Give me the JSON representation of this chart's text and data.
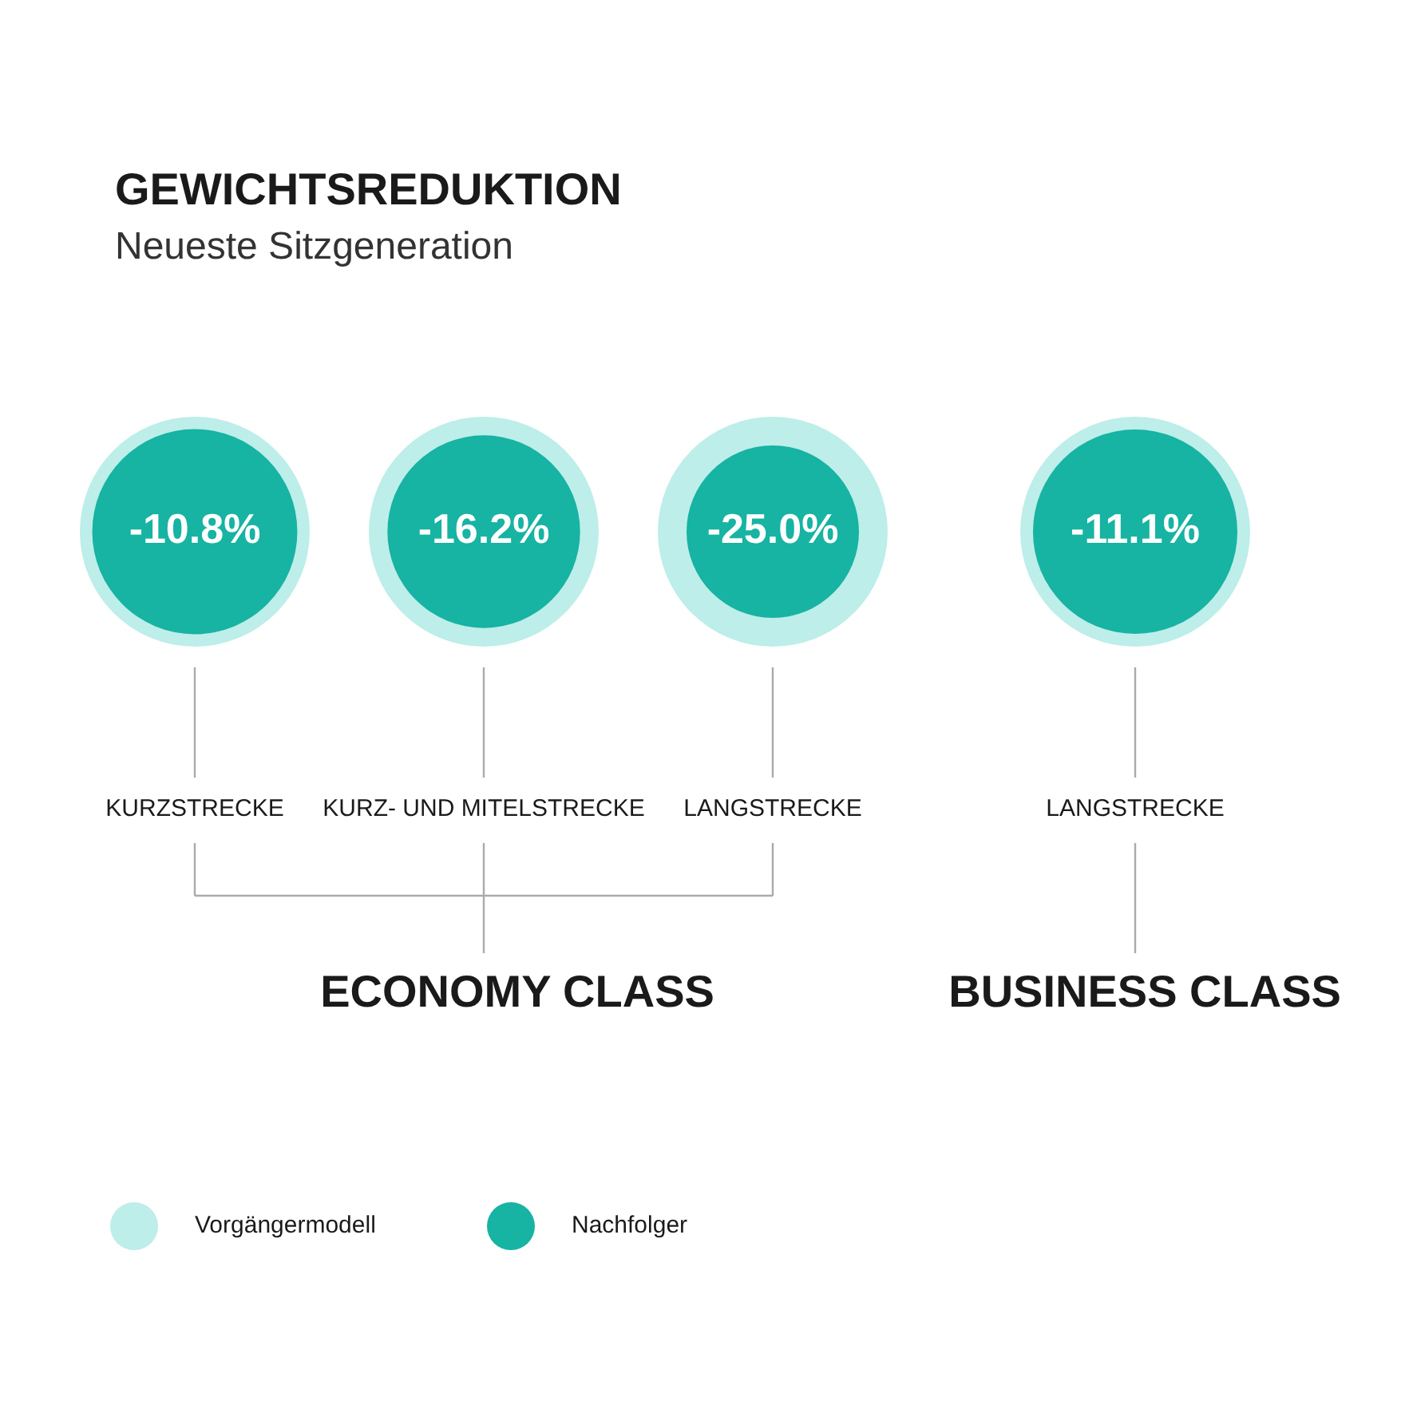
{
  "chart_data": {
    "type": "other",
    "title": "GEWICHTSREDUKTION",
    "subtitle": "Neueste Sitzgeneration",
    "categories": [
      "KURZSTRECKE",
      "KURZ- UND MITELSTRECKE",
      "LANGSTRECKE",
      "LANGSTRECKE"
    ],
    "series": [
      {
        "name": "Vorgängermodell",
        "color": "#bdeee9",
        "values": [
          null,
          null,
          null,
          null
        ]
      },
      {
        "name": "Nachfolger",
        "color": "#17b3a3",
        "values": [
          -10.8,
          -16.2,
          -25.0,
          -11.1
        ],
        "value_labels": [
          "-10.8%",
          "-16.2%",
          "-25.0%",
          "-11.1%"
        ]
      }
    ],
    "annotations": [
      "ECONOMY CLASS",
      "BUSINESS CLASS"
    ],
    "legend": "bottom left"
  }
}
